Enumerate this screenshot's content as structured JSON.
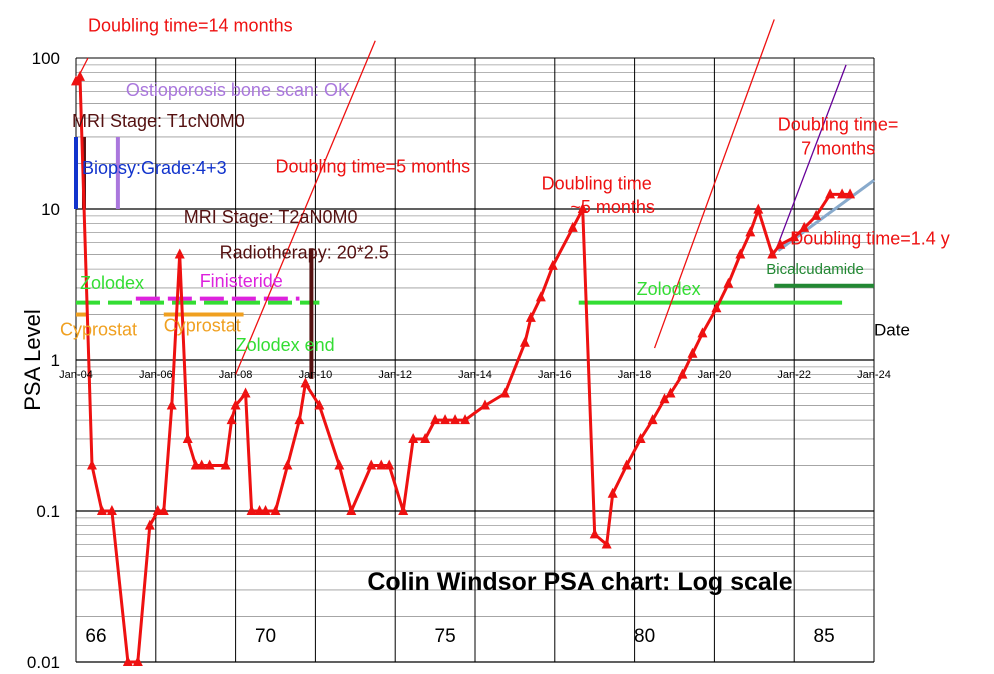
{
  "chart_data": {
    "type": "line",
    "title": "Colin Windsor PSA chart: Log scale",
    "ylabel": "PSA Level",
    "xlabel": "Date",
    "yscale": "log",
    "ylim": [
      0.01,
      100
    ],
    "xlim": [
      2004.0,
      2024.0
    ],
    "grid": true,
    "x_ticks": [
      "Jan-04",
      "Jan-06",
      "Jan-08",
      "Jan-10",
      "Jan-12",
      "Jan-14",
      "Jan-16",
      "Jan-18",
      "Jan-20",
      "Jan-22",
      "Jan-24"
    ],
    "y_ticks": [
      "100",
      "10",
      "1",
      "0.1",
      "0.01"
    ],
    "age_labels": [
      {
        "text": "66",
        "x": 2004.5
      },
      {
        "text": "70",
        "x": 2008.75
      },
      {
        "text": "75",
        "x": 2013.25
      },
      {
        "text": "80",
        "x": 2018.25
      },
      {
        "text": "85",
        "x": 2022.75
      }
    ],
    "series": [
      {
        "color": "#ee1111",
        "x": [
          2004.0,
          2004.1,
          2004.4,
          2004.65,
          2004.9,
          2005.3,
          2005.55,
          2005.85,
          2006.05,
          2006.2,
          2006.4,
          2006.6,
          2006.8,
          2007.0,
          2007.15,
          2007.35,
          2007.75,
          2007.9,
          2008.0,
          2008.25,
          2008.4,
          2008.6,
          2008.75,
          2009.0,
          2009.3,
          2009.6,
          2009.75,
          2010.1,
          2010.6,
          2010.9,
          2011.4,
          2011.65,
          2011.85,
          2012.2,
          2012.45,
          2012.75,
          2013.0,
          2013.25,
          2013.5,
          2013.75,
          2014.25,
          2014.75,
          2015.25,
          2015.4,
          2015.65,
          2015.95,
          2016.45,
          2016.7,
          2017.0,
          2017.3,
          2017.45,
          2017.8,
          2018.15,
          2018.45,
          2018.75,
          2018.9,
          2019.2,
          2019.45,
          2019.7,
          2020.05,
          2020.35,
          2020.65,
          2020.9,
          2021.1,
          2021.45,
          2021.65,
          2022.0,
          2022.25,
          2022.55,
          2022.9,
          2023.2,
          2023.4
        ],
        "y": [
          70,
          75,
          0.2,
          0.1,
          0.1,
          0.01,
          0.01,
          0.08,
          0.1,
          0.1,
          0.5,
          5,
          0.3,
          0.2,
          0.2,
          0.2,
          0.2,
          0.4,
          0.5,
          0.6,
          0.1,
          0.1,
          0.1,
          0.1,
          0.2,
          0.4,
          0.7,
          0.5,
          0.2,
          0.1,
          0.2,
          0.2,
          0.2,
          0.1,
          0.3,
          0.3,
          0.4,
          0.4,
          0.4,
          0.4,
          0.5,
          0.6,
          1.3,
          1.9,
          2.6,
          4.2,
          7.5,
          10,
          0.07,
          0.06,
          0.13,
          0.2,
          0.3,
          0.4,
          0.55,
          0.6,
          0.8,
          1.1,
          1.5,
          2.2,
          3.2,
          5.0,
          7.0,
          9.9,
          5.0,
          5.8,
          6.5,
          7.5,
          9.0,
          12.5,
          12.5,
          12.5
        ]
      }
    ],
    "trend_lines": [
      {
        "color": "#ee1111",
        "x": [
          2004.0,
          2004.3
        ],
        "y": [
          70,
          100
        ]
      },
      {
        "color": "#ee1111",
        "x": [
          2008.0,
          2011.5
        ],
        "y": [
          0.8,
          130
        ]
      },
      {
        "color": "#ee1111",
        "x": [
          2018.5,
          2021.5
        ],
        "y": [
          1.2,
          180
        ]
      },
      {
        "color": "#660099",
        "x": [
          2021.5,
          2023.3
        ],
        "y": [
          5.0,
          90
        ]
      },
      {
        "color": "#88aacc",
        "x": [
          2021.6,
          2024.0
        ],
        "y": [
          5.3,
          15.5
        ]
      }
    ],
    "treatments": [
      {
        "color": "#33dd33",
        "style": "dashed",
        "x": [
          2004.0,
          2010.1
        ],
        "y": 2.4
      },
      {
        "color": "#dd22dd",
        "style": "dashed",
        "x": [
          2005.5,
          2009.6
        ],
        "y": 2.55
      },
      {
        "color": "#f0a020",
        "style": "solid",
        "x": [
          2004.0,
          2004.3
        ],
        "y": 2.0
      },
      {
        "color": "#f0a020",
        "style": "solid",
        "x": [
          2006.2,
          2008.2
        ],
        "y": 2.0
      },
      {
        "color": "#33dd33",
        "style": "solid",
        "x": [
          2016.6,
          2023.2
        ],
        "y": 2.4
      },
      {
        "color": "#228833",
        "style": "solid",
        "x": [
          2021.5,
          2024.0
        ],
        "y": 3.1
      }
    ],
    "markers": [
      {
        "color": "#1133cc",
        "x": 2004.0,
        "y": [
          10,
          30
        ]
      },
      {
        "color": "#551111",
        "x": 2004.2,
        "y": [
          10,
          30
        ]
      },
      {
        "color": "#aa77dd",
        "x": 2005.05,
        "y": [
          10,
          30
        ]
      },
      {
        "color": "#551111",
        "x": 2009.9,
        "y": [
          0.75,
          5.5
        ]
      }
    ],
    "annotations": [
      {
        "text": "Doubling time=14 months",
        "color": "#ee1111",
        "x": 2004.3,
        "y": 150
      },
      {
        "text": "Ostioporosis bone scan: OK",
        "color": "#aa77dd",
        "x": 2005.25,
        "y": 56
      },
      {
        "text": "MRI Stage: T1cN0M0",
        "color": "#551111",
        "x": 2003.9,
        "y": 35
      },
      {
        "text": "Biopsy:Grade:4+3",
        "color": "#1133cc",
        "x": 2004.15,
        "y": 17
      },
      {
        "text": "Doubling time=5 months",
        "color": "#ee1111",
        "x": 2009.0,
        "y": 17.5
      },
      {
        "text": "MRI Stage: T2aN0M0",
        "color": "#551111",
        "x": 2006.7,
        "y": 8.1
      },
      {
        "text": "Radiotherapy: 20*2.5",
        "color": "#551111",
        "x": 2007.6,
        "y": 4.7
      },
      {
        "text": "Zolodex",
        "color": "#33dd33",
        "x": 2004.1,
        "y": 2.95
      },
      {
        "text": "Finisteride",
        "color": "#dd22dd",
        "x": 2007.1,
        "y": 3.05
      },
      {
        "text": "Cyprostat",
        "color": "#f0a020",
        "x": 2003.6,
        "y": 1.45
      },
      {
        "text": "Cyprostat",
        "color": "#f0a020",
        "x": 2006.2,
        "y": 1.55
      },
      {
        "text": "Zolodex end",
        "color": "#33dd33",
        "x": 2008.0,
        "y": 1.15
      },
      {
        "text": "Doubling time",
        "color": "#ee1111",
        "x": 2017.05,
        "y": 13.5
      },
      {
        "text": "~5 months",
        "color": "#ee1111",
        "x": 2017.45,
        "y": 9.4
      },
      {
        "text": "Zolodex",
        "color": "#33dd33",
        "x": 2018.05,
        "y": 2.7
      },
      {
        "text": "Doubling time=",
        "color": "#ee1111",
        "x": 2023.1,
        "y": 33
      },
      {
        "text": "7 months",
        "color": "#ee1111",
        "x": 2023.1,
        "y": 23
      },
      {
        "text": "Doubling time=1.4 y",
        "color": "#ee1111",
        "x": 2021.9,
        "y": 5.8
      },
      {
        "text": "Bicalcudamide",
        "color": "#228833",
        "x": 2021.3,
        "y": 3.7
      },
      {
        "text": "Date",
        "color": "#000000",
        "x": 2024.0,
        "y": 1.45
      }
    ]
  }
}
